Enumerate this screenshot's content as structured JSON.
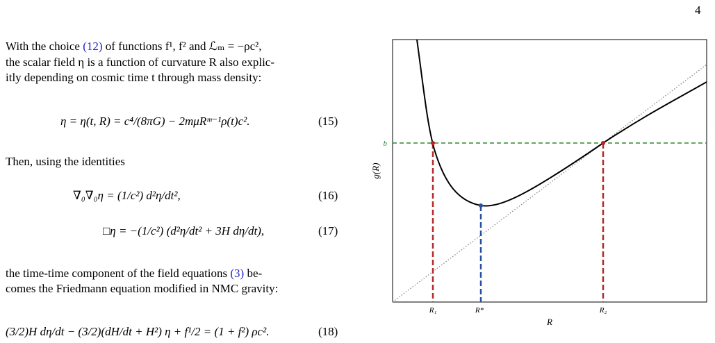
{
  "header": {
    "page_number": "4"
  },
  "body": {
    "paragraph_1": {
      "before": "With the choice ",
      "ref": "(12)",
      "after": " of functions f¹, f² and ℒₘ = −ρc²,",
      "lines": [
        "the scalar field η is a function of curvature R also explic-",
        "itly depending on cosmic time t through mass density:"
      ]
    },
    "paragraph_2": "Then, using the identities",
    "paragraph_3": {
      "before": "the time-time component of the field equations ",
      "ref": "(3)",
      "after": " be-",
      "lines": [
        "comes the Friedmann equation modified in NMC gravity:"
      ]
    }
  },
  "equations": [
    {
      "expression": "η = η(t, R) = c⁴/(8πG) − 2mμRᵐ⁻¹ρ(t)c².",
      "number": "(15)"
    },
    {
      "expression": "∇₀∇₀η  =  (1/c²) d²η/dt²,",
      "number": "(16)"
    },
    {
      "expression": "□η  =  −(1/c²) (d²η/dt² + 3H dη/dt),",
      "number": "(17)"
    },
    {
      "expression": "(3/2)H dη/dt − (3/2)(dH/dt + H²) η + f¹/2 = (1 + f²) ρc².",
      "number": "(18)"
    }
  ],
  "figure": {
    "level_label": "b",
    "y_label": "g(R)",
    "x_label": "R",
    "ticks": [
      "R₁",
      "R*",
      "R₂"
    ]
  }
}
